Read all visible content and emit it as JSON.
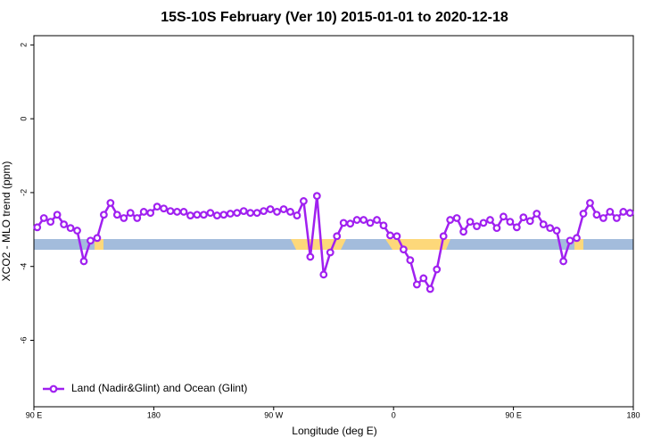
{
  "chart_data": {
    "type": "line",
    "title": "15S-10S February (Ver 10)   2015-01-01 to 2020-12-18",
    "x_label": "Longitude (deg E)",
    "y_label": "XCO2 - MLO trend (ppm)",
    "xlim": [
      90,
      540
    ],
    "xticks": [
      {
        "value": 90,
        "label": "90 E"
      },
      {
        "value": 180,
        "label": "180"
      },
      {
        "value": 270,
        "label": "90 W"
      },
      {
        "value": 360,
        "label": "0"
      },
      {
        "value": 450,
        "label": "90 E"
      },
      {
        "value": 540,
        "label": "180"
      }
    ],
    "ylim": [
      -7.8,
      2.25
    ],
    "yticks": [
      2,
      0,
      -2,
      -4,
      -6
    ],
    "legend_position": "bottom-left",
    "x": [
      92.5,
      97.5,
      102.5,
      107.5,
      112.5,
      117.5,
      122.5,
      127.5,
      132.5,
      137.5,
      142.5,
      147.5,
      152.5,
      157.5,
      162.5,
      167.5,
      172.5,
      177.5,
      182.5,
      187.5,
      192.5,
      197.5,
      202.5,
      207.5,
      212.5,
      217.5,
      222.5,
      227.5,
      232.5,
      237.5,
      242.5,
      247.5,
      252.5,
      257.5,
      262.5,
      267.5,
      272.5,
      277.5,
      282.5,
      287.5,
      292.5,
      297.5,
      302.5,
      307.5,
      312.5,
      317.5,
      322.5,
      327.5,
      332.5,
      337.5,
      342.5,
      347.5,
      352.5,
      357.5,
      362.5,
      367.5,
      372.5,
      377.5,
      382.5,
      387.5,
      392.5,
      397.5,
      402.5,
      407.5,
      412.5,
      417.5,
      422.5,
      427.5,
      432.5,
      437.5,
      442.5,
      447.5,
      452.5,
      457.5,
      462.5,
      467.5,
      472.5,
      477.5,
      482.5,
      487.5,
      492.5,
      497.5,
      502.5,
      507.5,
      512.5,
      517.5,
      522.5,
      527.5,
      532.5,
      537.5
    ],
    "series": [
      {
        "name": "Land (Nadir&Glint) and Ocean (Glint)",
        "color": "#a020f0",
        "values": [
          -2.94,
          -2.69,
          -2.79,
          -2.6,
          -2.86,
          -2.96,
          -3.03,
          -3.86,
          -3.3,
          -3.23,
          -2.6,
          -2.28,
          -2.6,
          -2.69,
          -2.55,
          -2.69,
          -2.52,
          -2.55,
          -2.38,
          -2.43,
          -2.5,
          -2.52,
          -2.52,
          -2.62,
          -2.6,
          -2.6,
          -2.55,
          -2.62,
          -2.6,
          -2.57,
          -2.55,
          -2.5,
          -2.55,
          -2.55,
          -2.5,
          -2.45,
          -2.52,
          -2.45,
          -2.52,
          -2.62,
          -2.23,
          -3.74,
          -2.09,
          -4.22,
          -3.62,
          -3.18,
          -2.82,
          -2.84,
          -2.74,
          -2.74,
          -2.82,
          -2.74,
          -2.89,
          -3.16,
          -3.18,
          -3.54,
          -3.83,
          -4.49,
          -4.32,
          -4.61,
          -4.08,
          -3.18,
          -2.74,
          -2.69,
          -3.06,
          -2.79,
          -2.91,
          -2.82,
          -2.74,
          -2.96,
          -2.65,
          -2.79,
          -2.94,
          -2.67,
          -2.77,
          -2.57,
          -2.86,
          -2.96,
          -3.03,
          -3.86,
          -3.3,
          -3.23,
          -2.57,
          -2.28,
          -2.6,
          -2.69,
          -2.52,
          -2.69,
          -2.52,
          -2.55
        ]
      }
    ]
  }
}
